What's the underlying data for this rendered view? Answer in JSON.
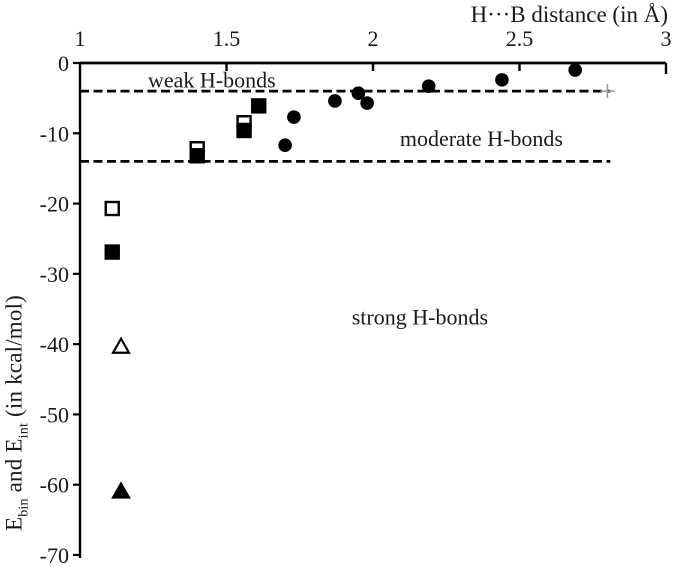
{
  "chart_data": {
    "type": "scatter",
    "title_x": "H···B distance (in Å)",
    "ylabel_parts": {
      "p1": "E",
      "s1": "bin",
      "p2": " and E",
      "s2": "int",
      "p3": " (in kcal/mol)"
    },
    "x_axis": {
      "min": 1,
      "max": 3,
      "ticks": [
        1,
        1.5,
        2,
        2.5,
        3
      ],
      "tick_labels": [
        "1",
        "1.5",
        "2",
        "2.5",
        "3"
      ],
      "position": "top"
    },
    "y_axis": {
      "min": -70,
      "max": 0,
      "ticks": [
        0,
        -10,
        -20,
        -30,
        -40,
        -50,
        -60,
        -70
      ],
      "tick_labels": [
        "0",
        "-10",
        "-20",
        "-30",
        "-40",
        "-50",
        "-60",
        "-70"
      ],
      "position": "left"
    },
    "series": [
      {
        "name": "filled-circles",
        "marker": "circle",
        "fill": "#000000",
        "points": [
          [
            1.7,
            -11.7
          ],
          [
            1.73,
            -7.7
          ],
          [
            1.87,
            -5.4
          ],
          [
            1.95,
            -4.3
          ],
          [
            1.98,
            -5.7
          ],
          [
            2.19,
            -3.3
          ],
          [
            2.44,
            -2.4
          ],
          [
            2.69,
            -1.0
          ]
        ]
      },
      {
        "name": "open-squares",
        "marker": "square",
        "fill": "#ffffff",
        "points": [
          [
            1.11,
            -20.7
          ],
          [
            1.4,
            -12.2
          ],
          [
            1.56,
            -8.5
          ]
        ]
      },
      {
        "name": "filled-squares",
        "marker": "square",
        "fill": "#000000",
        "points": [
          [
            1.11,
            -26.9
          ],
          [
            1.4,
            -13.2
          ],
          [
            1.56,
            -9.6
          ],
          [
            1.61,
            -6.1
          ]
        ]
      },
      {
        "name": "open-triangles",
        "marker": "triangle",
        "fill": "#ffffff",
        "points": [
          [
            1.14,
            -40.3
          ]
        ]
      },
      {
        "name": "filled-triangles",
        "marker": "triangle",
        "fill": "#000000",
        "points": [
          [
            1.14,
            -60.9
          ]
        ]
      },
      {
        "name": "axis-end-cross",
        "marker": "plus",
        "fill": "#9a9a9a",
        "points": [
          [
            2.8,
            -4.0
          ]
        ]
      }
    ],
    "threshold_lines": [
      {
        "y": -4.0,
        "x_start": 1.0,
        "x_end": 2.81
      },
      {
        "y": -14.0,
        "x_start": 1.0,
        "x_end": 2.81
      }
    ],
    "annotations": [
      {
        "text": "weak H-bonds",
        "x": 1.45,
        "y": -2.5
      },
      {
        "text": "moderate H-bonds",
        "x": 2.37,
        "y": -10.8
      },
      {
        "text": "strong H-bonds",
        "x": 2.16,
        "y": -36.2
      }
    ],
    "colors": {
      "axis": "#000000",
      "text": "#1a1a1a",
      "cross": "#9a9a9a",
      "background": "#ffffff"
    },
    "grid": "off",
    "legend": "none"
  }
}
